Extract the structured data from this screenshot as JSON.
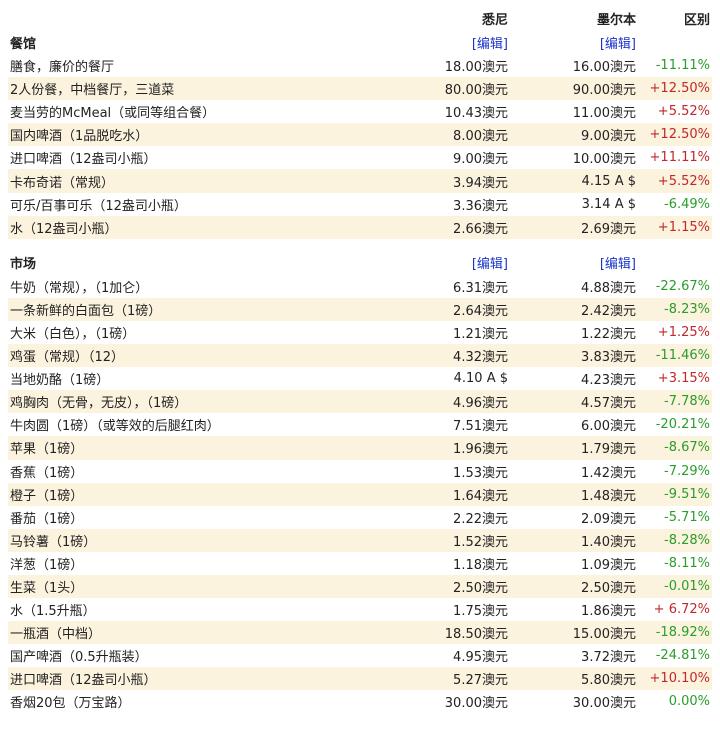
{
  "header": {
    "city1": "悉尼",
    "city2": "墨尔本",
    "diff": "区别"
  },
  "sections": [
    {
      "title": "餐馆",
      "edit": "[编辑]",
      "rows": [
        {
          "name": "膳食，廉价的餐厅",
          "v1": "18.00澳元",
          "v2": "16.00澳元",
          "d": "-11.11%"
        },
        {
          "name": "2人份餐，中档餐厅，三道菜",
          "v1": "80.00澳元",
          "v2": "90.00澳元",
          "d": "+12.50%"
        },
        {
          "name": "麦当劳的McMeal（或同等组合餐）",
          "v1": "10.43澳元",
          "v2": "11.00澳元",
          "d": "+5.52%"
        },
        {
          "name": "国内啤酒（1品脱吃水）",
          "v1": "8.00澳元",
          "v2": "9.00澳元",
          "d": "+12.50%"
        },
        {
          "name": "进口啤酒（12盎司小瓶）",
          "v1": "9.00澳元",
          "v2": "10.00澳元",
          "d": "+11.11%"
        },
        {
          "name": "卡布奇诺（常规）",
          "v1": "3.94澳元",
          "v2": "4.15 A $",
          "d": "+5.52%"
        },
        {
          "name": "可乐/百事可乐（12盎司小瓶）",
          "v1": "3.36澳元",
          "v2": "3.14 A $",
          "d": "-6.49%"
        },
        {
          "name": "水（12盎司小瓶）",
          "v1": "2.66澳元",
          "v2": "2.69澳元",
          "d": "+1.15%"
        }
      ]
    },
    {
      "title": "市场",
      "edit": "[编辑]",
      "rows": [
        {
          "name": "牛奶（常规），（1加仑）",
          "v1": "6.31澳元",
          "v2": "4.88澳元",
          "d": "-22.67%"
        },
        {
          "name": "一条新鲜的白面包（1磅）",
          "v1": "2.64澳元",
          "v2": "2.42澳元",
          "d": "-8.23%"
        },
        {
          "name": "大米（白色），（1磅）",
          "v1": "1.21澳元",
          "v2": "1.22澳元",
          "d": "+1.25%"
        },
        {
          "name": "鸡蛋（常规）（12）",
          "v1": "4.32澳元",
          "v2": "3.83澳元",
          "d": "-11.46%"
        },
        {
          "name": "当地奶酪（1磅）",
          "v1": "4.10 A $",
          "v2": "4.23澳元",
          "d": "+3.15%"
        },
        {
          "name": "鸡胸肉（无骨，无皮），（1磅）",
          "v1": "4.96澳元",
          "v2": "4.57澳元",
          "d": "-7.78%"
        },
        {
          "name": "牛肉圆（1磅）（或等效的后腿红肉）",
          "v1": "7.51澳元",
          "v2": "6.00澳元",
          "d": "-20.21%"
        },
        {
          "name": "苹果（1磅）",
          "v1": "1.96澳元",
          "v2": "1.79澳元",
          "d": "-8.67%"
        },
        {
          "name": "香蕉（1磅）",
          "v1": "1.53澳元",
          "v2": "1.42澳元",
          "d": "-7.29%"
        },
        {
          "name": "橙子（1磅）",
          "v1": "1.64澳元",
          "v2": "1.48澳元",
          "d": "-9.51%"
        },
        {
          "name": "番茄（1磅）",
          "v1": "2.22澳元",
          "v2": "2.09澳元",
          "d": "-5.71%"
        },
        {
          "name": "马铃薯（1磅）",
          "v1": "1.52澳元",
          "v2": "1.40澳元",
          "d": "-8.28%"
        },
        {
          "name": "洋葱（1磅）",
          "v1": "1.18澳元",
          "v2": "1.09澳元",
          "d": "-8.11%"
        },
        {
          "name": "生菜（1头）",
          "v1": "2.50澳元",
          "v2": "2.50澳元",
          "d": "-0.01%"
        },
        {
          "name": "水（1.5升瓶）",
          "v1": "1.75澳元",
          "v2": "1.86澳元",
          "d": "+ 6.72%"
        },
        {
          "name": "一瓶酒（中档）",
          "v1": "18.50澳元",
          "v2": "15.00澳元",
          "d": "-18.92%"
        },
        {
          "name": "国产啤酒（0.5升瓶装）",
          "v1": "4.95澳元",
          "v2": "3.72澳元",
          "d": "-24.81%"
        },
        {
          "name": "进口啤酒（12盎司小瓶）",
          "v1": "5.27澳元",
          "v2": "5.80澳元",
          "d": "+10.10%"
        },
        {
          "name": "香烟20包（万宝路）",
          "v1": "30.00澳元",
          "v2": "30.00澳元",
          "d": "0.00%"
        }
      ]
    }
  ],
  "colors": {
    "shade": "#fbf3de",
    "negative": "#2a9d2a",
    "positive": "#c0282a",
    "link": "#1a35c8"
  }
}
